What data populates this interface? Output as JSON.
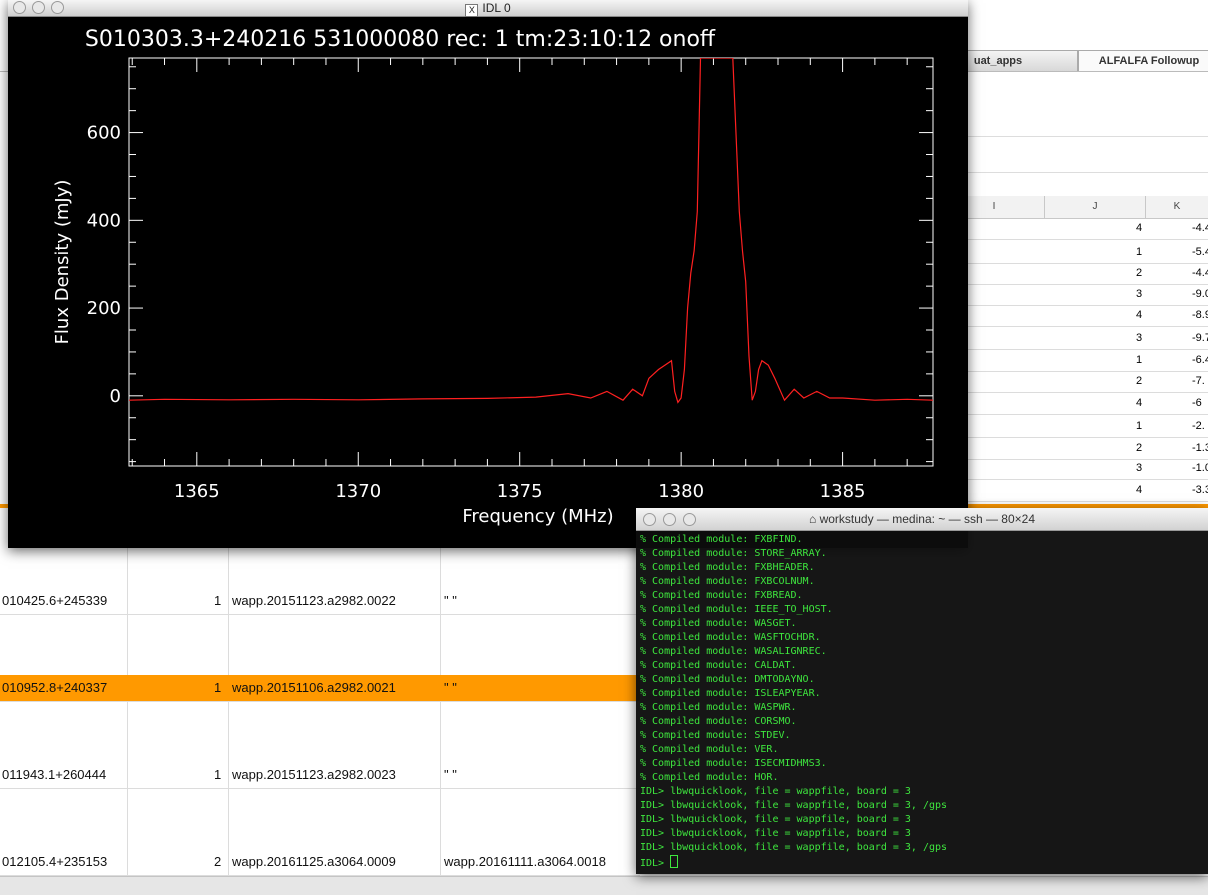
{
  "spreadsheet": {
    "tabs": [
      "uat_apps",
      "ALFALFA Followup"
    ],
    "column_headers": [
      "I",
      "J",
      "K"
    ],
    "right_rows": [
      {
        "j": "4",
        "k": "-4.4"
      },
      {
        "j": "1",
        "k": "-5.4"
      },
      {
        "j": "2",
        "k": "-4.4"
      },
      {
        "j": "3",
        "k": "-9.0"
      },
      {
        "j": "4",
        "k": "-8.9"
      },
      {
        "j": "3",
        "k": "-9.7"
      },
      {
        "j": "1",
        "k": "-6.4"
      },
      {
        "j": "2",
        "k": "-7."
      },
      {
        "j": "4",
        "k": "-6"
      },
      {
        "j": "1",
        "k": "-2."
      },
      {
        "j": "2",
        "k": "-1.3"
      },
      {
        "j": "3",
        "k": "-1.0"
      },
      {
        "j": "4",
        "k": "-3.3"
      }
    ],
    "left_rows": [
      {
        "name": "010425.6+245339",
        "num": "1",
        "file": "wapp.20151123.a2982.0022",
        "note": "\" \"",
        "highlight": false
      },
      {
        "name": "010952.8+240337",
        "num": "1",
        "file": "wapp.20151106.a2982.0021",
        "note": "\" \"",
        "highlight": true
      },
      {
        "name": "011943.1+260444",
        "num": "1",
        "file": "wapp.20151123.a2982.0023",
        "note": "\" \"",
        "highlight": false
      },
      {
        "name": "012105.4+235153",
        "num": "2",
        "file": "wapp.20161125.a3064.0009",
        "note": "wapp.20161111.a3064.0018",
        "highlight": false
      }
    ],
    "highlight_color": "#ff9900"
  },
  "idl_window": {
    "title": "IDL 0",
    "title_icon": "x11-icon"
  },
  "chart_data": {
    "type": "line",
    "title": "S010303.3+240216 531000080 rec:   1 tm:23:10:12 onoff",
    "xlabel": "Frequency (MHz)",
    "ylabel": "Flux Density (mJy)",
    "xlim": [
      1362.9,
      1387.8
    ],
    "ylim": [
      -160,
      770
    ],
    "xticks": [
      "1365",
      "1370",
      "1375",
      "1380",
      "1385"
    ],
    "yticks": [
      "0",
      "200",
      "400",
      "600"
    ],
    "series": [
      {
        "color": "#ff2020",
        "x": [
          1362.9,
          1364,
          1366,
          1368,
          1370,
          1372,
          1374,
          1375.5,
          1376.5,
          1377.2,
          1377.7,
          1378.2,
          1378.5,
          1378.8,
          1379.0,
          1379.3,
          1379.5,
          1379.7,
          1379.8,
          1379.9,
          1380.0,
          1380.1,
          1380.2,
          1380.3,
          1380.4,
          1380.5,
          1380.6,
          1380.8,
          1381.0,
          1381.3,
          1381.6,
          1381.8,
          1381.9,
          1382.0,
          1382.1,
          1382.2,
          1382.3,
          1382.4,
          1382.5,
          1382.7,
          1382.9,
          1383.2,
          1383.5,
          1383.8,
          1384.2,
          1384.6,
          1385.0,
          1386.0,
          1387.0,
          1387.8
        ],
        "y": [
          -10,
          -8,
          -9,
          -8,
          -9,
          -7,
          -6,
          -3,
          5,
          -5,
          10,
          -10,
          15,
          0,
          40,
          60,
          70,
          80,
          10,
          -15,
          -5,
          60,
          200,
          280,
          330,
          420,
          770,
          770,
          770,
          770,
          770,
          420,
          330,
          260,
          90,
          -10,
          10,
          60,
          80,
          70,
          40,
          -10,
          15,
          -5,
          10,
          -5,
          -5,
          -10,
          -8,
          -10
        ]
      }
    ]
  },
  "terminal": {
    "title": "workstudy — medina: ~ — ssh — 80×24",
    "home_icon": "home-icon",
    "lines": [
      "% Compiled module: FXBFIND.",
      "% Compiled module: STORE_ARRAY.",
      "% Compiled module: FXBHEADER.",
      "% Compiled module: FXBCOLNUM.",
      "% Compiled module: FXBREAD.",
      "% Compiled module: IEEE_TO_HOST.",
      "% Compiled module: WASGET.",
      "% Compiled module: WASFTOCHDR.",
      "% Compiled module: WASALIGNREC.",
      "% Compiled module: CALDAT.",
      "% Compiled module: DMTODAYNO.",
      "% Compiled module: ISLEAPYEAR.",
      "% Compiled module: WASPWR.",
      "% Compiled module: CORSMO.",
      "% Compiled module: STDEV.",
      "% Compiled module: VER.",
      "% Compiled module: ISECMIDHMS3.",
      "% Compiled module: HOR.",
      "IDL> lbwquicklook, file = wappfile, board = 3",
      "IDL> lbwquicklook, file = wappfile, board = 3, /gps",
      "IDL> lbwquicklook, file = wappfile, board = 3",
      "IDL> lbwquicklook, file = wappfile, board = 3",
      "IDL> lbwquicklook, file = wappfile, board = 3, /gps"
    ],
    "prompt": "IDL> "
  }
}
